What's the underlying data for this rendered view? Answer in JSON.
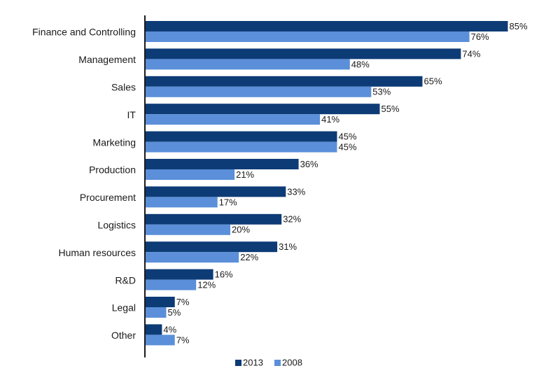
{
  "chart_data": {
    "type": "bar",
    "orientation": "horizontal",
    "title": "",
    "xlabel": "",
    "ylabel": "",
    "xlim": [
      0,
      85
    ],
    "grid": false,
    "legend_position": "bottom",
    "categories": [
      "Finance and Controlling",
      "Management",
      "Sales",
      "IT",
      "Marketing",
      "Production",
      "Procurement",
      "Logistics",
      "Human resources",
      "R&D",
      "Legal",
      "Other"
    ],
    "series": [
      {
        "name": "2013",
        "color": "#0d3b76",
        "values": [
          85,
          74,
          65,
          55,
          45,
          36,
          33,
          32,
          31,
          16,
          7,
          4
        ],
        "labels": [
          "85%",
          "74%",
          "65%",
          "55%",
          "45%",
          "36%",
          "33%",
          "32%",
          "31%",
          "16%",
          "7%",
          "4%"
        ]
      },
      {
        "name": "2008",
        "color": "#5b8fd9",
        "values": [
          76,
          48,
          53,
          41,
          45,
          21,
          17,
          20,
          22,
          12,
          5,
          7
        ],
        "labels": [
          "76%",
          "48%",
          "53%",
          "41%",
          "45%",
          "21%",
          "17%",
          "20%",
          "22%",
          "12%",
          "5%",
          "7%"
        ]
      }
    ]
  }
}
